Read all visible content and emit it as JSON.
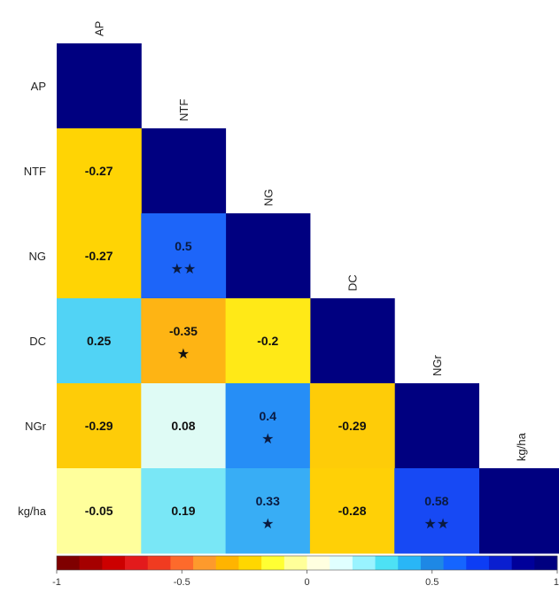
{
  "chart_data": {
    "type": "heatmap",
    "variables": [
      "AP",
      "NTF",
      "NG",
      "DC",
      "NGr",
      "kg/ha"
    ],
    "diagonal_value": 1,
    "cells": [
      {
        "row": "NTF",
        "col": "AP",
        "value": -0.27,
        "label": "-0.27",
        "stars": ""
      },
      {
        "row": "NG",
        "col": "AP",
        "value": -0.27,
        "label": "-0.27",
        "stars": ""
      },
      {
        "row": "NG",
        "col": "NTF",
        "value": 0.5,
        "label": "0.5",
        "stars": "★★"
      },
      {
        "row": "DC",
        "col": "AP",
        "value": 0.25,
        "label": "0.25",
        "stars": ""
      },
      {
        "row": "DC",
        "col": "NTF",
        "value": -0.35,
        "label": "-0.35",
        "stars": "★"
      },
      {
        "row": "DC",
        "col": "NG",
        "value": -0.2,
        "label": "-0.2",
        "stars": ""
      },
      {
        "row": "NGr",
        "col": "AP",
        "value": -0.29,
        "label": "-0.29",
        "stars": ""
      },
      {
        "row": "NGr",
        "col": "NTF",
        "value": 0.08,
        "label": "0.08",
        "stars": ""
      },
      {
        "row": "NGr",
        "col": "NG",
        "value": 0.4,
        "label": "0.4",
        "stars": "★"
      },
      {
        "row": "NGr",
        "col": "DC",
        "value": -0.29,
        "label": "-0.29",
        "stars": ""
      },
      {
        "row": "kg/ha",
        "col": "AP",
        "value": -0.05,
        "label": "-0.05",
        "stars": ""
      },
      {
        "row": "kg/ha",
        "col": "NTF",
        "value": 0.19,
        "label": "0.19",
        "stars": ""
      },
      {
        "row": "kg/ha",
        "col": "NG",
        "value": 0.33,
        "label": "0.33",
        "stars": "★"
      },
      {
        "row": "kg/ha",
        "col": "DC",
        "value": -0.28,
        "label": "-0.28",
        "stars": ""
      },
      {
        "row": "kg/ha",
        "col": "NGr",
        "value": 0.58,
        "label": "0.58",
        "stars": "★★"
      }
    ],
    "colorbar": {
      "range": [
        -1,
        1
      ],
      "ticks": [
        -1,
        -0.5,
        0,
        0.5,
        1
      ],
      "tick_labels": [
        "-1",
        "-0.5",
        "0",
        "0.5",
        "1"
      ],
      "colors": [
        "#7f0000",
        "#a50000",
        "#cc0000",
        "#e31a1c",
        "#f03b20",
        "#fd6a2b",
        "#fd9a2c",
        "#ffb400",
        "#ffd700",
        "#ffff33",
        "#ffff99",
        "#ffffe0",
        "#e0ffff",
        "#99f3ff",
        "#4de1f5",
        "#29b6f6",
        "#1e88e5",
        "#1565ff",
        "#0d3df5",
        "#0a1fd0",
        "#00009a",
        "#000080"
      ]
    },
    "grid": false,
    "legend_position": "bottom"
  }
}
